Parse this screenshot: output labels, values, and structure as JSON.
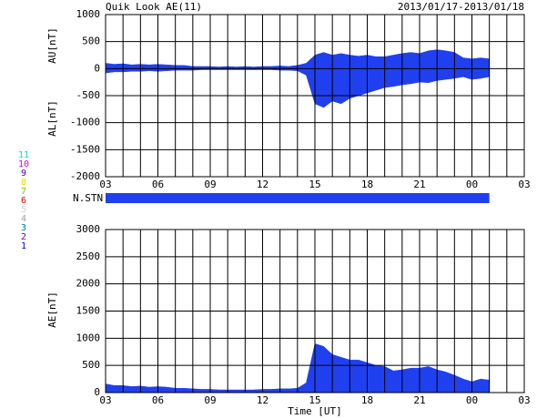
{
  "chart_data": [
    {
      "type": "area",
      "title": "Quik Look AE(11)",
      "subtitle": "2013/01/17-2013/01/18",
      "ylabels": [
        "AU[nT]",
        "AL[nT]"
      ],
      "x": [
        3,
        3.5,
        4,
        4.5,
        5,
        5.5,
        6,
        6.5,
        7,
        7.5,
        8,
        8.5,
        9,
        9.5,
        10,
        10.5,
        11,
        11.5,
        12,
        12.5,
        13,
        13.5,
        14,
        14.5,
        15,
        15.5,
        16,
        16.5,
        17,
        17.5,
        18,
        18.5,
        19,
        19.5,
        20,
        20.5,
        21,
        21.5,
        22,
        22.5,
        23,
        23.5,
        24,
        24.5,
        25
      ],
      "series": [
        {
          "name": "AU",
          "color": "#2040f0",
          "values": [
            100,
            80,
            90,
            70,
            80,
            70,
            80,
            70,
            60,
            60,
            40,
            40,
            40,
            30,
            40,
            30,
            40,
            30,
            40,
            40,
            50,
            40,
            60,
            100,
            250,
            300,
            250,
            280,
            250,
            230,
            250,
            220,
            220,
            250,
            280,
            300,
            280,
            330,
            350,
            330,
            300,
            200,
            180,
            200,
            180
          ]
        },
        {
          "name": "AL",
          "color": "#2040f0",
          "values": [
            -80,
            -60,
            -60,
            -50,
            -50,
            -40,
            -50,
            -40,
            -30,
            -30,
            -30,
            -20,
            -20,
            -20,
            -20,
            -20,
            -20,
            -20,
            -20,
            -20,
            -30,
            -30,
            -40,
            -120,
            -650,
            -720,
            -600,
            -650,
            -550,
            -500,
            -450,
            -400,
            -350,
            -330,
            -300,
            -280,
            -250,
            -260,
            -220,
            -200,
            -180,
            -150,
            -200,
            -180,
            -150
          ]
        }
      ],
      "xlim": [
        3,
        27
      ],
      "xticks": [
        {
          "value": 3,
          "label": "03"
        },
        {
          "value": 6,
          "label": "06"
        },
        {
          "value": 9,
          "label": "09"
        },
        12,
        15,
        18,
        21,
        {
          "value": 24,
          "label": "00"
        },
        {
          "value": 27,
          "label": "03"
        }
      ],
      "xminorticks": [
        4,
        5,
        7,
        8,
        10,
        11,
        13,
        14,
        16,
        17,
        19,
        20,
        22,
        23,
        25,
        26
      ],
      "ylim": [
        -2000,
        1000
      ],
      "yticks": [
        -2000,
        -1500,
        -1000,
        -500,
        0,
        500,
        1000
      ],
      "grid": true,
      "stations_label": "N.STN",
      "stations_color": "#2040f0",
      "station_legend": [
        {
          "label": "11",
          "color": "#00d8d8"
        },
        {
          "label": "10",
          "color": "#e000e0"
        },
        {
          "label": "9",
          "color": "#4000c0"
        },
        {
          "label": "8",
          "color": "#e0e000"
        },
        {
          "label": "7",
          "color": "#80c000"
        },
        {
          "label": "6",
          "color": "#e00000"
        },
        {
          "label": "5",
          "color": "#d0d0d0"
        },
        {
          "label": "4",
          "color": "#a0a0a0"
        },
        {
          "label": "3",
          "color": "#008080"
        },
        {
          "label": "2",
          "color": "#8000a0"
        },
        {
          "label": "1",
          "color": "#0000e0"
        }
      ]
    },
    {
      "type": "area",
      "ylabels": [
        "AE[nT]"
      ],
      "xlabel": "Time [UT]",
      "x": [
        3,
        3.5,
        4,
        4.5,
        5,
        5.5,
        6,
        6.5,
        7,
        7.5,
        8,
        8.5,
        9,
        9.5,
        10,
        10.5,
        11,
        11.5,
        12,
        12.5,
        13,
        13.5,
        14,
        14.5,
        15,
        15.5,
        16,
        16.5,
        17,
        17.5,
        18,
        18.5,
        19,
        19.5,
        20,
        20.5,
        21,
        21.5,
        22,
        22.5,
        23,
        23.5,
        24,
        24.5,
        25
      ],
      "series": [
        {
          "name": "AE",
          "color": "#2040f0",
          "values": [
            160,
            130,
            130,
            110,
            120,
            100,
            110,
            100,
            80,
            80,
            70,
            60,
            60,
            50,
            50,
            50,
            50,
            50,
            60,
            60,
            70,
            70,
            80,
            180,
            900,
            850,
            700,
            650,
            600,
            600,
            550,
            500,
            480,
            400,
            420,
            450,
            450,
            480,
            420,
            380,
            320,
            250,
            200,
            250,
            230
          ]
        }
      ],
      "xlim": [
        3,
        27
      ],
      "xticks": [
        {
          "value": 3,
          "label": "03"
        },
        {
          "value": 6,
          "label": "06"
        },
        {
          "value": 9,
          "label": "09"
        },
        12,
        15,
        18,
        21,
        {
          "value": 24,
          "label": "00"
        },
        {
          "value": 27,
          "label": "03"
        }
      ],
      "xminorticks": [
        4,
        5,
        7,
        8,
        10,
        11,
        13,
        14,
        16,
        17,
        19,
        20,
        22,
        23,
        25,
        26
      ],
      "ylim": [
        0,
        3000
      ],
      "yticks": [
        0,
        500,
        1000,
        1500,
        2000,
        2500,
        3000
      ],
      "grid": true
    }
  ]
}
